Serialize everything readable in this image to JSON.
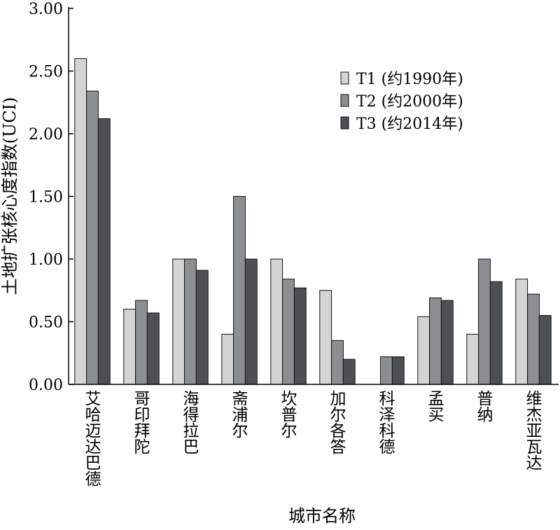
{
  "chart_data": {
    "type": "bar",
    "title": "",
    "xlabel": "城市名称",
    "ylabel": "土地扩张核心度指数(UCI)",
    "ylim": [
      0,
      3.0
    ],
    "yticks": [
      "0.00",
      "0.50",
      "1.00",
      "1.50",
      "2.00",
      "2.50",
      "3.00"
    ],
    "grid": false,
    "legend_position": "top-right",
    "categories": [
      "艾哈迈达巴德",
      "哥印拜陀",
      "海得拉巴",
      "斋浦尔",
      "坎普尔",
      "加尔各答",
      "科泽科德",
      "孟买",
      "普纳",
      "维杰亚瓦达"
    ],
    "series": [
      {
        "name": "T1 (约1990年)",
        "color": "#d4d4d4",
        "values": [
          2.6,
          0.6,
          1.0,
          0.4,
          1.0,
          0.75,
          0.0,
          0.54,
          0.4,
          0.84
        ]
      },
      {
        "name": "T2 (约2000年)",
        "color": "#8c8f92",
        "values": [
          2.34,
          0.67,
          1.0,
          1.5,
          0.84,
          0.35,
          0.22,
          0.69,
          1.0,
          0.72
        ]
      },
      {
        "name": "T3 (约2014年)",
        "color": "#4c4f53",
        "values": [
          2.12,
          0.57,
          0.91,
          1.0,
          0.77,
          0.2,
          0.22,
          0.67,
          0.82,
          0.55
        ]
      }
    ]
  }
}
